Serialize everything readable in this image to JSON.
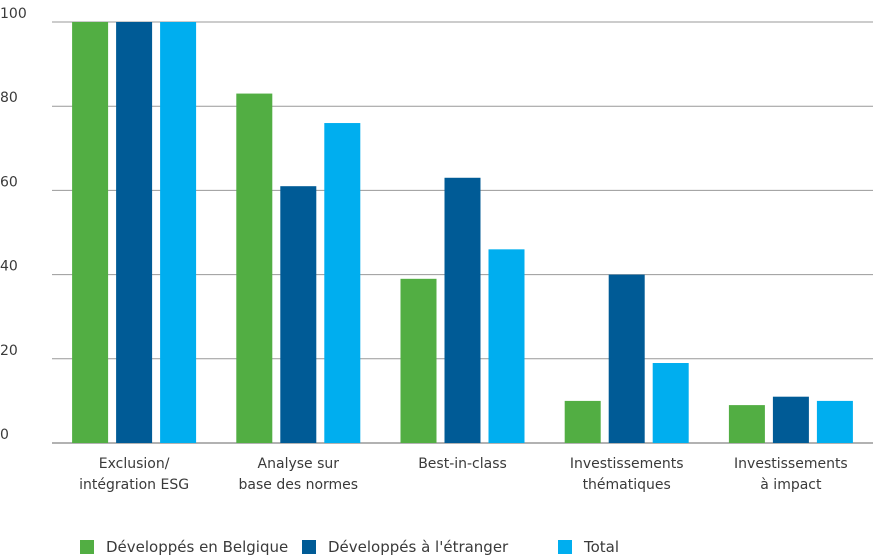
{
  "chart_data": {
    "type": "bar",
    "categories": [
      "Exclusion/\nintégration ESG",
      "Analyse sur\nbase des normes",
      "Best-in-class",
      "Investissements\nthématiques",
      "Investissements\nà impact"
    ],
    "series": [
      {
        "name": "Développés en Belgique",
        "color": "#52ae43",
        "values": [
          100,
          83,
          39,
          10,
          9
        ]
      },
      {
        "name": "Développés à l'étranger",
        "color": "#005b96",
        "values": [
          100,
          61,
          63,
          40,
          11
        ]
      },
      {
        "name": "Total",
        "color": "#00aeef",
        "values": [
          100,
          76,
          46,
          19,
          10
        ]
      }
    ],
    "ylim": [
      0,
      100
    ],
    "yticks": [
      0,
      20,
      40,
      60,
      80,
      100
    ],
    "grid": true
  }
}
